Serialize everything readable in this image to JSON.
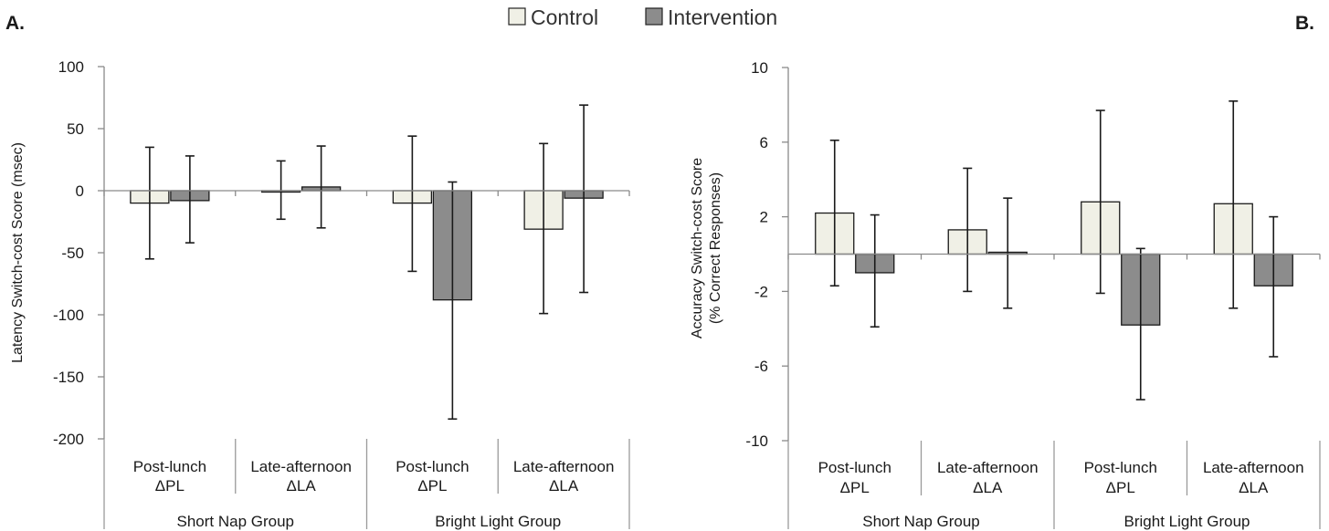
{
  "panels": [
    "A.",
    "B."
  ],
  "legend": {
    "items": [
      {
        "label": "Control",
        "color": "#f0f0e6"
      },
      {
        "label": "Intervention",
        "color": "#8c8c8c"
      }
    ]
  },
  "chart_data": [
    {
      "type": "bar",
      "panel": "A.",
      "ylabel": "Latency Switch-cost Score (msec)",
      "ylim": [
        -200,
        100
      ],
      "yticks": [
        100,
        50,
        0,
        -50,
        -100,
        -150,
        -200
      ],
      "categories": [
        {
          "line1": "Post-lunch",
          "line2": "ΔPL",
          "group": "Short Nap Group"
        },
        {
          "line1": "Late-afternoon",
          "line2": "ΔLA",
          "group": "Short Nap Group"
        },
        {
          "line1": "Post-lunch",
          "line2": "ΔPL",
          "group": "Bright Light Group"
        },
        {
          "line1": "Late-afternoon",
          "line2": "ΔLA",
          "group": "Bright Light Group"
        }
      ],
      "groups": [
        "Short Nap Group",
        "Bright Light Group"
      ],
      "series": [
        {
          "name": "Control",
          "values": [
            -10,
            -1,
            -10,
            -31
          ],
          "err_low": [
            -55,
            -23,
            -65,
            -99
          ],
          "err_high": [
            35,
            24,
            44,
            38
          ]
        },
        {
          "name": "Intervention",
          "values": [
            -8,
            3,
            -88,
            -6
          ],
          "err_low": [
            -42,
            -30,
            -184,
            -82
          ],
          "err_high": [
            28,
            36,
            7,
            69
          ]
        }
      ]
    },
    {
      "type": "bar",
      "panel": "B.",
      "ylabel": "Accuracy Switch-cost Score",
      "ylabel2": "(% Correct Responses)",
      "ylim": [
        -10,
        10
      ],
      "yticks": [
        10,
        6,
        2,
        -2,
        -6,
        -10
      ],
      "categories": [
        {
          "line1": "Post-lunch",
          "line2": "ΔPL",
          "group": "Short Nap Group"
        },
        {
          "line1": "Late-afternoon",
          "line2": "ΔLA",
          "group": "Short Nap Group"
        },
        {
          "line1": "Post-lunch",
          "line2": "ΔPL",
          "group": "Bright Light Group"
        },
        {
          "line1": "Late-afternoon",
          "line2": "ΔLA",
          "group": "Bright Light Group"
        }
      ],
      "groups": [
        "Short Nap Group",
        "Bright Light Group"
      ],
      "series": [
        {
          "name": "Control",
          "values": [
            2.2,
            1.3,
            2.8,
            2.7
          ],
          "err_low": [
            -1.7,
            -2.0,
            -2.1,
            -2.9
          ],
          "err_high": [
            6.1,
            4.6,
            7.7,
            8.2
          ]
        },
        {
          "name": "Intervention",
          "values": [
            -1.0,
            0.1,
            -3.8,
            -1.7
          ],
          "err_low": [
            -3.9,
            -2.9,
            -7.8,
            -5.5
          ],
          "err_high": [
            2.1,
            3.0,
            0.3,
            2.0
          ]
        }
      ]
    }
  ]
}
